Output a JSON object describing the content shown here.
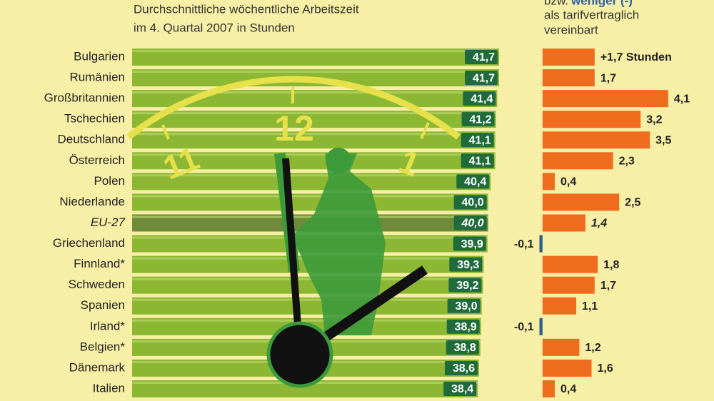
{
  "chart_data": {
    "type": "bar",
    "left_title": [
      "Durchschnittliche wöchentliche Arbeitszeit",
      "im 4. Quartal 2007 in Stunden"
    ],
    "right_header": {
      "prefix": "bzw.",
      "emphasis": "weniger (-)",
      "lines": [
        "als tarifvertraglich",
        "vereinbart"
      ]
    },
    "categories": [
      "Bulgarien",
      "Rumänien",
      "Großbritannien",
      "Tschechien",
      "Deutschland",
      "Österreich",
      "Polen",
      "Niederlande",
      "EU-27",
      "Griechenland",
      "Finnland*",
      "Schweden",
      "Spanien",
      "Irland*",
      "Belgien*",
      "Dänemark",
      "Italien"
    ],
    "highlight": "EU-27",
    "series": [
      {
        "color": "#8cb733",
        "values": [
          41.7,
          41.7,
          41.4,
          41.2,
          41.1,
          41.1,
          40.4,
          40.0,
          40.0,
          39.9,
          39.3,
          39.2,
          39.0,
          38.9,
          38.8,
          38.6,
          38.4
        ],
        "value_labels": [
          "41,7",
          "41,7",
          "41,4",
          "41,2",
          "41,1",
          "41,1",
          "40,4",
          "40,0",
          "40,0",
          "39,9",
          "39,3",
          "39,2",
          "39,0",
          "38,9",
          "38,8",
          "38,6",
          "38,4"
        ]
      },
      {
        "color": "#ef6c1f",
        "negative_color": "#2c5e8c",
        "axis": "x2",
        "values": [
          1.7,
          1.7,
          4.1,
          3.2,
          3.5,
          2.3,
          0.4,
          2.5,
          1.4,
          -0.1,
          1.8,
          1.7,
          1.1,
          -0.1,
          1.2,
          1.6,
          0.4
        ],
        "value_labels": [
          "+1,7 Stunden",
          "1,7",
          "4,1",
          "3,2",
          "3,5",
          "2,3",
          "0,4",
          "2,5",
          "1,4",
          "-0,1",
          "1,8",
          "1,7",
          "1,1",
          "-0,1",
          "1,2",
          "1,6",
          "0,4"
        ]
      }
    ],
    "xlim": [
      -15,
      41.8
    ],
    "x2lim": [
      -1.3,
      5.5
    ],
    "clock_numerals": [
      "11",
      "12",
      "1"
    ]
  }
}
